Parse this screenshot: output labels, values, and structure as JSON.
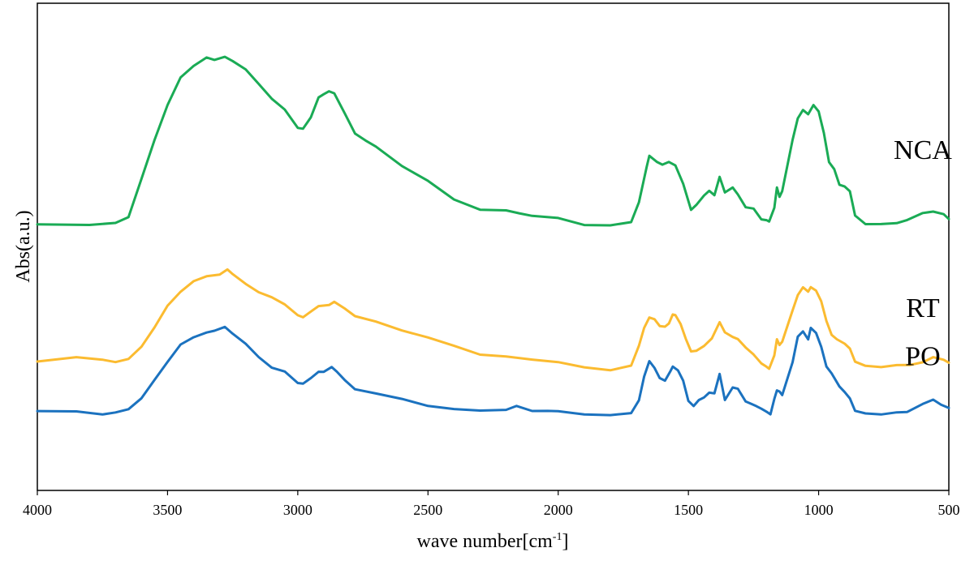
{
  "chart_data": {
    "type": "line",
    "title": "",
    "xlabel": "wave number[cm",
    "xlabel_superscript": "-1",
    "xlabel_suffix": "]",
    "ylabel": "Abs(a.u.)",
    "xlim": [
      4000,
      500
    ],
    "x_reversed": true,
    "ylim": [
      0,
      1
    ],
    "y_ticks_shown": false,
    "grid": false,
    "legend": "none",
    "x_ticks": [
      4000,
      3500,
      3000,
      2500,
      2000,
      1500,
      1000,
      500
    ],
    "x_tick_labels": [
      "4000",
      "3500",
      "3000",
      "2500",
      "2000",
      "1500",
      "1000",
      "500"
    ],
    "series": [
      {
        "name": "NCA",
        "color": "#1aab55",
        "label_x": 600,
        "points": [
          [
            4000,
            0.56
          ],
          [
            3800,
            0.56
          ],
          [
            3700,
            0.562
          ],
          [
            3650,
            0.58
          ],
          [
            3600,
            0.68
          ],
          [
            3550,
            0.78
          ],
          [
            3500,
            0.875
          ],
          [
            3450,
            0.945
          ],
          [
            3400,
            0.975
          ],
          [
            3350,
            1.0
          ],
          [
            3320,
            0.99
          ],
          [
            3280,
            1.0
          ],
          [
            3250,
            0.99
          ],
          [
            3200,
            0.965
          ],
          [
            3150,
            0.93
          ],
          [
            3100,
            0.89
          ],
          [
            3050,
            0.86
          ],
          [
            3000,
            0.815
          ],
          [
            2980,
            0.81
          ],
          [
            2950,
            0.84
          ],
          [
            2920,
            0.895
          ],
          [
            2900,
            0.9
          ],
          [
            2880,
            0.91
          ],
          [
            2860,
            0.905
          ],
          [
            2820,
            0.85
          ],
          [
            2780,
            0.8
          ],
          [
            2740,
            0.78
          ],
          [
            2700,
            0.763
          ],
          [
            2600,
            0.715
          ],
          [
            2500,
            0.673
          ],
          [
            2400,
            0.625
          ],
          [
            2300,
            0.6
          ],
          [
            2200,
            0.595
          ],
          [
            2150,
            0.59
          ],
          [
            2100,
            0.583
          ],
          [
            2000,
            0.575
          ],
          [
            1900,
            0.56
          ],
          [
            1800,
            0.557
          ],
          [
            1720,
            0.565
          ],
          [
            1690,
            0.62
          ],
          [
            1660,
            0.71
          ],
          [
            1650,
            0.74
          ],
          [
            1620,
            0.725
          ],
          [
            1600,
            0.715
          ],
          [
            1575,
            0.725
          ],
          [
            1550,
            0.715
          ],
          [
            1520,
            0.665
          ],
          [
            1490,
            0.6
          ],
          [
            1470,
            0.61
          ],
          [
            1440,
            0.635
          ],
          [
            1420,
            0.65
          ],
          [
            1400,
            0.635
          ],
          [
            1380,
            0.685
          ],
          [
            1360,
            0.645
          ],
          [
            1330,
            0.655
          ],
          [
            1310,
            0.64
          ],
          [
            1280,
            0.605
          ],
          [
            1250,
            0.6
          ],
          [
            1220,
            0.575
          ],
          [
            1200,
            0.57
          ],
          [
            1190,
            0.567
          ],
          [
            1170,
            0.605
          ],
          [
            1160,
            0.655
          ],
          [
            1150,
            0.633
          ],
          [
            1140,
            0.648
          ],
          [
            1100,
            0.78
          ],
          [
            1080,
            0.84
          ],
          [
            1060,
            0.86
          ],
          [
            1040,
            0.848
          ],
          [
            1020,
            0.875
          ],
          [
            1000,
            0.855
          ],
          [
            980,
            0.8
          ],
          [
            960,
            0.725
          ],
          [
            940,
            0.703
          ],
          [
            920,
            0.665
          ],
          [
            900,
            0.66
          ],
          [
            880,
            0.645
          ],
          [
            860,
            0.585
          ],
          [
            820,
            0.56
          ],
          [
            760,
            0.56
          ],
          [
            700,
            0.565
          ],
          [
            660,
            0.57
          ],
          [
            600,
            0.59
          ],
          [
            560,
            0.595
          ],
          [
            520,
            0.585
          ],
          [
            500,
            0.574
          ]
        ]
      },
      {
        "name": "RT",
        "color": "#fbbb30",
        "label_x": 600,
        "points": [
          [
            4000,
            0.2
          ],
          [
            3850,
            0.21
          ],
          [
            3750,
            0.205
          ],
          [
            3700,
            0.2
          ],
          [
            3650,
            0.205
          ],
          [
            3600,
            0.24
          ],
          [
            3550,
            0.29
          ],
          [
            3500,
            0.345
          ],
          [
            3450,
            0.385
          ],
          [
            3400,
            0.41
          ],
          [
            3350,
            0.423
          ],
          [
            3300,
            0.43
          ],
          [
            3270,
            0.44
          ],
          [
            3250,
            0.43
          ],
          [
            3200,
            0.405
          ],
          [
            3150,
            0.38
          ],
          [
            3100,
            0.37
          ],
          [
            3050,
            0.35
          ],
          [
            3000,
            0.32
          ],
          [
            2980,
            0.318
          ],
          [
            2950,
            0.33
          ],
          [
            2920,
            0.345
          ],
          [
            2880,
            0.35
          ],
          [
            2860,
            0.355
          ],
          [
            2820,
            0.34
          ],
          [
            2780,
            0.32
          ],
          [
            2700,
            0.303
          ],
          [
            2600,
            0.283
          ],
          [
            2500,
            0.263
          ],
          [
            2400,
            0.24
          ],
          [
            2300,
            0.22
          ],
          [
            2200,
            0.212
          ],
          [
            2100,
            0.205
          ],
          [
            2000,
            0.2
          ],
          [
            1900,
            0.183
          ],
          [
            1800,
            0.178
          ],
          [
            1720,
            0.19
          ],
          [
            1690,
            0.24
          ],
          [
            1670,
            0.29
          ],
          [
            1650,
            0.315
          ],
          [
            1630,
            0.31
          ],
          [
            1610,
            0.295
          ],
          [
            1590,
            0.29
          ],
          [
            1575,
            0.3
          ],
          [
            1560,
            0.325
          ],
          [
            1550,
            0.32
          ],
          [
            1530,
            0.3
          ],
          [
            1510,
            0.26
          ],
          [
            1490,
            0.225
          ],
          [
            1470,
            0.23
          ],
          [
            1440,
            0.24
          ],
          [
            1410,
            0.26
          ],
          [
            1380,
            0.305
          ],
          [
            1360,
            0.275
          ],
          [
            1330,
            0.265
          ],
          [
            1310,
            0.26
          ],
          [
            1280,
            0.235
          ],
          [
            1250,
            0.22
          ],
          [
            1220,
            0.195
          ],
          [
            1200,
            0.185
          ],
          [
            1190,
            0.183
          ],
          [
            1170,
            0.215
          ],
          [
            1160,
            0.258
          ],
          [
            1150,
            0.245
          ],
          [
            1140,
            0.25
          ],
          [
            1100,
            0.335
          ],
          [
            1080,
            0.375
          ],
          [
            1060,
            0.393
          ],
          [
            1040,
            0.385
          ],
          [
            1030,
            0.395
          ],
          [
            1010,
            0.385
          ],
          [
            990,
            0.36
          ],
          [
            970,
            0.305
          ],
          [
            950,
            0.27
          ],
          [
            930,
            0.26
          ],
          [
            900,
            0.245
          ],
          [
            880,
            0.235
          ],
          [
            860,
            0.2
          ],
          [
            820,
            0.187
          ],
          [
            760,
            0.187
          ],
          [
            700,
            0.19
          ],
          [
            650,
            0.19
          ],
          [
            600,
            0.2
          ],
          [
            560,
            0.21
          ],
          [
            520,
            0.205
          ],
          [
            500,
            0.197
          ]
        ]
      },
      {
        "name": "PO",
        "color": "#1b72bf",
        "label_x": 600,
        "points": [
          [
            4000,
            0.07
          ],
          [
            3850,
            0.068
          ],
          [
            3750,
            0.063
          ],
          [
            3700,
            0.065
          ],
          [
            3650,
            0.075
          ],
          [
            3600,
            0.105
          ],
          [
            3550,
            0.15
          ],
          [
            3500,
            0.2
          ],
          [
            3450,
            0.245
          ],
          [
            3400,
            0.262
          ],
          [
            3350,
            0.278
          ],
          [
            3320,
            0.28
          ],
          [
            3280,
            0.29
          ],
          [
            3250,
            0.275
          ],
          [
            3200,
            0.245
          ],
          [
            3150,
            0.212
          ],
          [
            3100,
            0.185
          ],
          [
            3050,
            0.172
          ],
          [
            3000,
            0.145
          ],
          [
            2980,
            0.142
          ],
          [
            2950,
            0.155
          ],
          [
            2920,
            0.175
          ],
          [
            2900,
            0.172
          ],
          [
            2870,
            0.185
          ],
          [
            2850,
            0.175
          ],
          [
            2820,
            0.15
          ],
          [
            2780,
            0.128
          ],
          [
            2700,
            0.117
          ],
          [
            2600,
            0.1
          ],
          [
            2500,
            0.085
          ],
          [
            2400,
            0.075
          ],
          [
            2300,
            0.07
          ],
          [
            2200,
            0.075
          ],
          [
            2160,
            0.082
          ],
          [
            2100,
            0.07
          ],
          [
            2040,
            0.072
          ],
          [
            2000,
            0.068
          ],
          [
            1900,
            0.062
          ],
          [
            1800,
            0.06
          ],
          [
            1720,
            0.063
          ],
          [
            1690,
            0.1
          ],
          [
            1670,
            0.16
          ],
          [
            1650,
            0.2
          ],
          [
            1630,
            0.185
          ],
          [
            1610,
            0.155
          ],
          [
            1590,
            0.15
          ],
          [
            1570,
            0.175
          ],
          [
            1560,
            0.185
          ],
          [
            1540,
            0.178
          ],
          [
            1520,
            0.15
          ],
          [
            1500,
            0.095
          ],
          [
            1480,
            0.085
          ],
          [
            1460,
            0.098
          ],
          [
            1440,
            0.105
          ],
          [
            1420,
            0.12
          ],
          [
            1400,
            0.115
          ],
          [
            1380,
            0.168
          ],
          [
            1360,
            0.1
          ],
          [
            1330,
            0.13
          ],
          [
            1310,
            0.13
          ],
          [
            1280,
            0.095
          ],
          [
            1260,
            0.088
          ],
          [
            1240,
            0.085
          ],
          [
            1220,
            0.075
          ],
          [
            1200,
            0.068
          ],
          [
            1185,
            0.063
          ],
          [
            1170,
            0.1
          ],
          [
            1160,
            0.125
          ],
          [
            1150,
            0.122
          ],
          [
            1140,
            0.11
          ],
          [
            1100,
            0.2
          ],
          [
            1080,
            0.265
          ],
          [
            1060,
            0.278
          ],
          [
            1040,
            0.26
          ],
          [
            1030,
            0.287
          ],
          [
            1010,
            0.275
          ],
          [
            990,
            0.24
          ],
          [
            970,
            0.185
          ],
          [
            950,
            0.17
          ],
          [
            920,
            0.135
          ],
          [
            900,
            0.118
          ],
          [
            880,
            0.105
          ],
          [
            860,
            0.07
          ],
          [
            820,
            0.063
          ],
          [
            760,
            0.063
          ],
          [
            700,
            0.065
          ],
          [
            660,
            0.068
          ],
          [
            600,
            0.09
          ],
          [
            560,
            0.098
          ],
          [
            530,
            0.088
          ],
          [
            500,
            0.078
          ]
        ]
      }
    ]
  }
}
